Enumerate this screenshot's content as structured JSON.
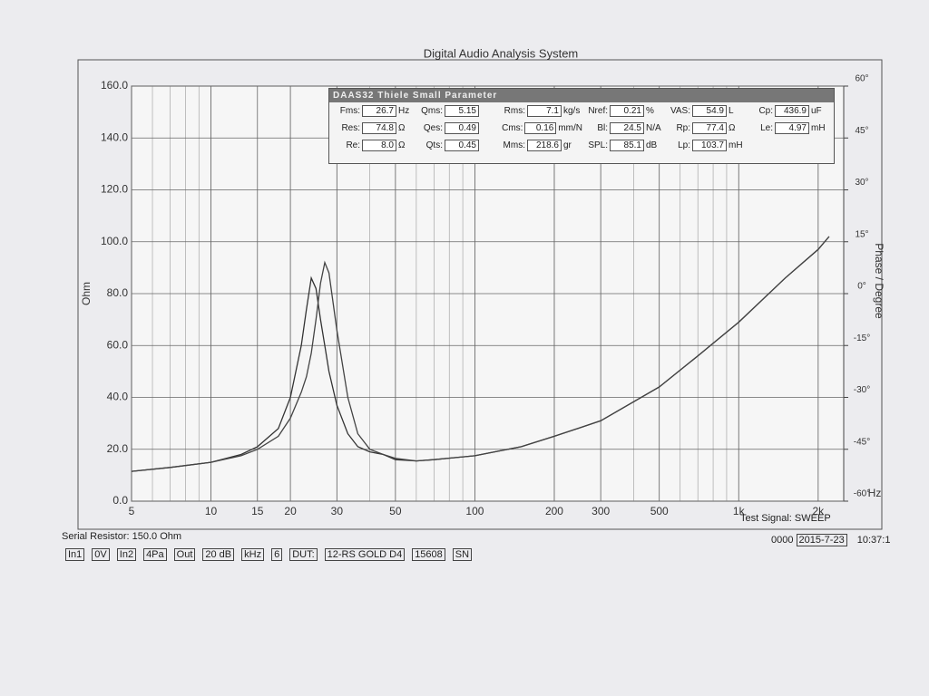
{
  "chart_data": {
    "type": "line",
    "title": "Digital Audio Analysis System",
    "ylabel": "Ohm",
    "y2label": "Phase / Degree",
    "xunit": "Hz",
    "log_x": true,
    "grid": true,
    "x": [
      5,
      7,
      10,
      13,
      15,
      18,
      20,
      22,
      23,
      24,
      25,
      26,
      27,
      28,
      30,
      33,
      36,
      40,
      45,
      50,
      60,
      70,
      100,
      150,
      200,
      300,
      500,
      700,
      1000,
      1500,
      2000,
      2200
    ],
    "series": [
      {
        "color": "#333333",
        "values": [
          11.5,
          13,
          15,
          18,
          21,
          28,
          40,
          60,
          74,
          86,
          82,
          70,
          60,
          50,
          37,
          26,
          21,
          19,
          18,
          16,
          15.5,
          16,
          17.5,
          21,
          25,
          31,
          44,
          56,
          69,
          86,
          97,
          102
        ]
      },
      {
        "color": "#444444",
        "values": [
          11.5,
          13,
          15,
          17.5,
          20,
          25,
          32,
          42,
          48,
          57,
          70,
          84,
          92,
          88,
          66,
          40,
          26,
          20,
          18,
          16.5,
          15.5,
          16,
          17.5,
          21,
          25,
          31,
          44,
          56,
          69,
          86,
          97,
          102
        ]
      }
    ],
    "xlim": [
      5,
      2500
    ],
    "xticks": [
      5,
      10,
      15,
      20,
      30,
      50,
      100,
      200,
      300,
      500,
      {
        "value": 1000,
        "label": "1k"
      },
      {
        "value": 2000,
        "label": "2k"
      }
    ],
    "ylim": [
      0,
      160
    ],
    "yticks": [
      {
        "value": 0,
        "label": "0.0"
      },
      {
        "value": 20,
        "label": "20.0"
      },
      {
        "value": 40,
        "label": "40.0"
      },
      {
        "value": 60,
        "label": "60.0"
      },
      {
        "value": 80,
        "label": "80.0"
      },
      {
        "value": 100,
        "label": "100.0"
      },
      {
        "value": 120,
        "label": "120.0"
      },
      {
        "value": 140,
        "label": "140.0"
      },
      {
        "value": 160,
        "label": "160.0"
      }
    ],
    "y2lim": [
      -60,
      60
    ],
    "y2ticks": [
      {
        "value": -60,
        "label": "-60°"
      },
      {
        "value": -45,
        "label": "-45°"
      },
      {
        "value": -30,
        "label": "-30°"
      },
      {
        "value": -15,
        "label": "-15°"
      },
      {
        "value": 0,
        "label": "0°"
      },
      {
        "value": 15,
        "label": "15°"
      },
      {
        "value": 30,
        "label": "30°"
      },
      {
        "value": 45,
        "label": "45°"
      },
      {
        "value": 60,
        "label": "60°"
      }
    ]
  },
  "parameters": {
    "title": "DAAS32 Thiele Small Parameter",
    "rows": [
      [
        {
          "label": "Fms:",
          "value": "26.7",
          "unit": "Hz"
        },
        {
          "label": "Qms:",
          "value": "5.15"
        },
        {
          "label": "Rms:",
          "value": "7.1",
          "unit": "kg/s"
        },
        {
          "label": "Nref:",
          "value": "0.21",
          "unit": "%"
        },
        {
          "label": "VAS:",
          "value": "54.9",
          "unit": "L"
        },
        {
          "label": "Cp:",
          "value": "436.9",
          "unit": "uF"
        }
      ],
      [
        {
          "label": "Res:",
          "value": "74.8",
          "unit": "Ω"
        },
        {
          "label": "Qes:",
          "value": "0.49"
        },
        {
          "label": "Cms:",
          "value": "0.16",
          "unit": "mm/N"
        },
        {
          "label": "Bl:",
          "value": "24.5",
          "unit": "N/A"
        },
        {
          "label": "Rp:",
          "value": "77.4",
          "unit": "Ω"
        },
        {
          "label": "Le:",
          "value": "4.97",
          "unit": "mH"
        }
      ],
      [
        {
          "label": "Re:",
          "value": "8.0",
          "unit": "Ω"
        },
        {
          "label": "Qts:",
          "value": "0.45"
        },
        {
          "label": "Mms:",
          "value": "218.6",
          "unit": "gr"
        },
        {
          "label": "SPL:",
          "value": "85.1",
          "unit": "dB"
        },
        {
          "label": "Lp:",
          "value": "103.7",
          "unit": "mH"
        }
      ]
    ]
  },
  "footer": {
    "serial_resistor": "Serial Resistor: 150.0 Ohm",
    "test_signal": "Test Signal: SWEEP",
    "controls": [
      "In1",
      "0V",
      "In2",
      "4Pa",
      "Out",
      "20 dB",
      "kHz",
      "6",
      "DUT:",
      "12-RS GOLD D4",
      "15608",
      "SN"
    ],
    "counter": "0000",
    "date": "2015-7-23",
    "time": "10:37:1"
  }
}
